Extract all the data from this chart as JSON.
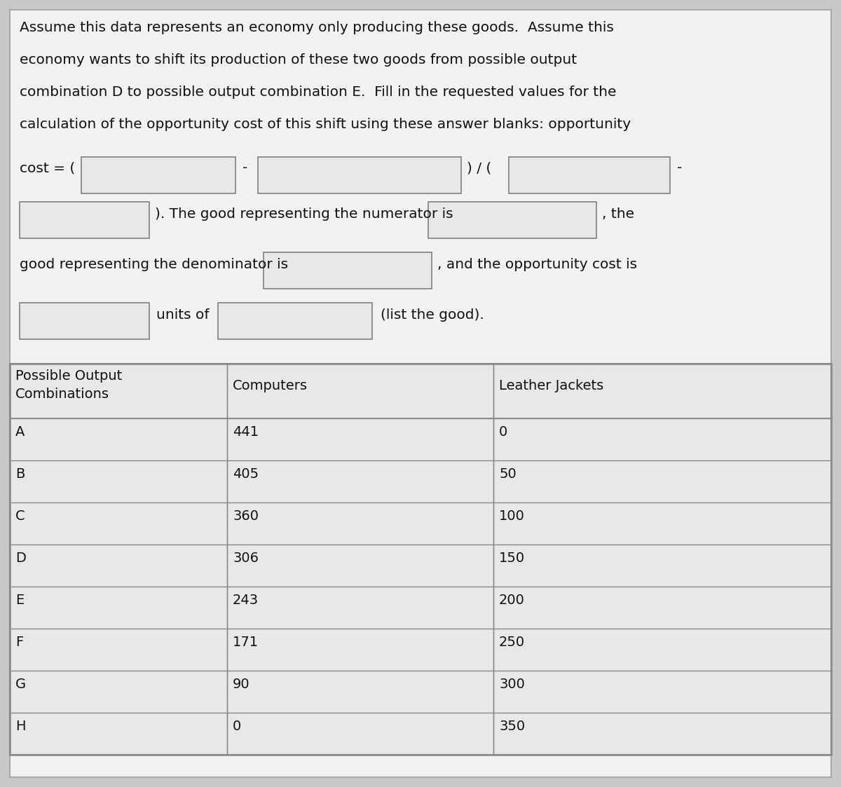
{
  "background_color": "#c8c8c8",
  "panel_color": "#f2f2f2",
  "paragraph_lines": [
    "Assume this data represents an economy only producing these goods.  Assume this",
    "economy wants to shift its production of these two goods from possible output",
    "combination D to possible output combination E.  Fill in the requested values for the",
    "calculation of the opportunity cost of this shift using these answer blanks: opportunity"
  ],
  "cost_line_label": "cost = (",
  "formula_sep1": "-",
  "formula_sep2": ") / (",
  "formula_sep3": "-",
  "row2_text1": "). The good representing the numerator is",
  "row2_text2": ", the",
  "row3_text1": "good representing the denominator is",
  "row3_text2": ", and the opportunity cost is",
  "row4_text1": "units of",
  "row4_text2": "(list the good).",
  "table_col0_header": "Possible Output\nCombinations",
  "table_col1_header": "Computers",
  "table_col2_header": "Leather Jackets",
  "table_rows": [
    [
      "A",
      "441",
      "0"
    ],
    [
      "B",
      "405",
      "50"
    ],
    [
      "C",
      "360",
      "100"
    ],
    [
      "D",
      "306",
      "150"
    ],
    [
      "E",
      "243",
      "200"
    ],
    [
      "F",
      "171",
      "250"
    ],
    [
      "G",
      "90",
      "300"
    ],
    [
      "H",
      "0",
      "350"
    ]
  ],
  "input_box_fill": "#e8e8e8",
  "input_box_edge": "#888888",
  "table_fill": "#e8e8e8",
  "table_edge": "#888888",
  "text_color": "#111111",
  "font_size": 14.5,
  "table_font_size": 14.0
}
